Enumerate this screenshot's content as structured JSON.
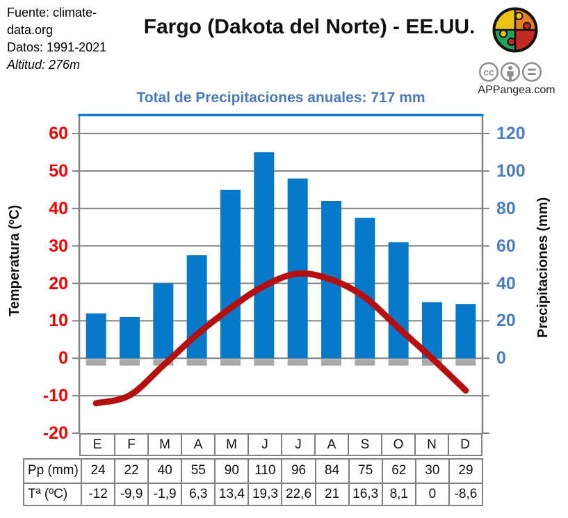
{
  "header": {
    "source_line1": "Fuente: climate-",
    "source_line2": "data.org",
    "source_line3": "Datos: 1991-2021",
    "source_line4": "Altitud: 276m",
    "title": "Fargo (Dakota del Norte) - EE.UU.",
    "website": "APPangea.com",
    "license_icons": [
      "cc-icon",
      "attribution-icon",
      "equal-icon"
    ],
    "logo_colors": [
      "#e9c313",
      "#e87e22",
      "#27a25c",
      "#c32a23"
    ]
  },
  "chart_data": {
    "type": "combo",
    "title": "Total de Precipitaciones anuales: 717 mm",
    "annual_total_mm": 717,
    "categories": [
      "E",
      "F",
      "M",
      "A",
      "M",
      "J",
      "J",
      "A",
      "S",
      "O",
      "N",
      "D"
    ],
    "series": [
      {
        "name": "Pp (mm)",
        "type": "bar",
        "axis": "right",
        "color": "#0878c8",
        "values": [
          24,
          22,
          40,
          55,
          90,
          110,
          96,
          84,
          75,
          62,
          30,
          29
        ]
      },
      {
        "name": "Tª (ºC)",
        "type": "line",
        "axis": "left",
        "color": "#b60f0f",
        "values": [
          -12,
          -9.9,
          -1.9,
          6.3,
          13.4,
          19.3,
          22.6,
          21,
          16.3,
          8.1,
          0,
          -8.6
        ],
        "labels": [
          "-12",
          "-9,9",
          "-1,9",
          "6,3",
          "13,4",
          "19,3",
          "22,6",
          "21",
          "16,3",
          "8,1",
          "0",
          "-8,6"
        ]
      }
    ],
    "left_axis": {
      "label": "Temperatura (ºC)",
      "ticks": [
        60,
        50,
        40,
        30,
        20,
        10,
        0,
        -10,
        -20
      ],
      "min": -20,
      "max": 65,
      "tick_color": "#f40000"
    },
    "right_axis": {
      "label": "Precipitaciones (mm)",
      "ticks": [
        120,
        100,
        80,
        60,
        40,
        20,
        0
      ],
      "tick_color": "#4a7ec0"
    },
    "grid": true,
    "grid_color": "#808080",
    "plot_top_border_color": "#0878c8",
    "bar_base_stub_color": "#a9a9a9",
    "legend_position": "none"
  },
  "table": {
    "precip_row_label": "Pp (mm)",
    "temp_row_label": "Tª (ºC)"
  }
}
